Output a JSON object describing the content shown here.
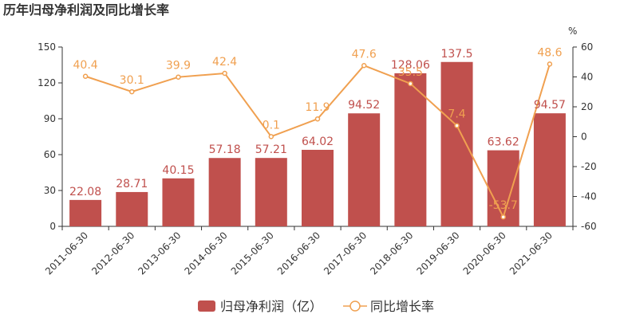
{
  "chart_data": {
    "type": "bar",
    "title": "历年归母净利润及同比增长率",
    "categories": [
      "2011-06-30",
      "2012-06-30",
      "2013-06-30",
      "2014-06-30",
      "2015-06-30",
      "2016-06-30",
      "2017-06-30",
      "2018-06-30",
      "2019-06-30",
      "2020-06-30",
      "2021-06-30"
    ],
    "series": [
      {
        "name": "归母净利润（亿）",
        "type": "bar",
        "axis": "left",
        "color": "#c0504d",
        "values": [
          22.08,
          28.71,
          40.15,
          57.18,
          57.21,
          64.02,
          94.52,
          128.06,
          137.5,
          63.62,
          94.57
        ],
        "labels": [
          "22.08",
          "28.71",
          "40.15",
          "57.18",
          "57.21",
          "64.02",
          "94.52",
          "128.06",
          "137.5",
          "63.62",
          "94.57"
        ]
      },
      {
        "name": "同比增长率",
        "type": "line",
        "axis": "right",
        "color": "#f0a050",
        "values": [
          40.4,
          30.1,
          39.9,
          42.4,
          0.1,
          11.9,
          47.6,
          35.5,
          7.4,
          -53.7,
          48.6
        ],
        "labels": [
          "40.4",
          "30.1",
          "39.9",
          "42.4",
          "0.1",
          "11.9",
          "47.6",
          "35.5",
          "7.4",
          "-53.7",
          "48.6"
        ]
      }
    ],
    "y_left": {
      "ylim": [
        0,
        150
      ],
      "ticks": [
        "0",
        "30",
        "60",
        "90",
        "120",
        "150"
      ]
    },
    "y_right": {
      "unit": "%",
      "ylim": [
        -60,
        60
      ],
      "ticks": [
        "-60",
        "-40",
        "-20",
        "0",
        "20",
        "40",
        "60"
      ]
    },
    "grid": false,
    "legend_position": "bottom-center"
  }
}
